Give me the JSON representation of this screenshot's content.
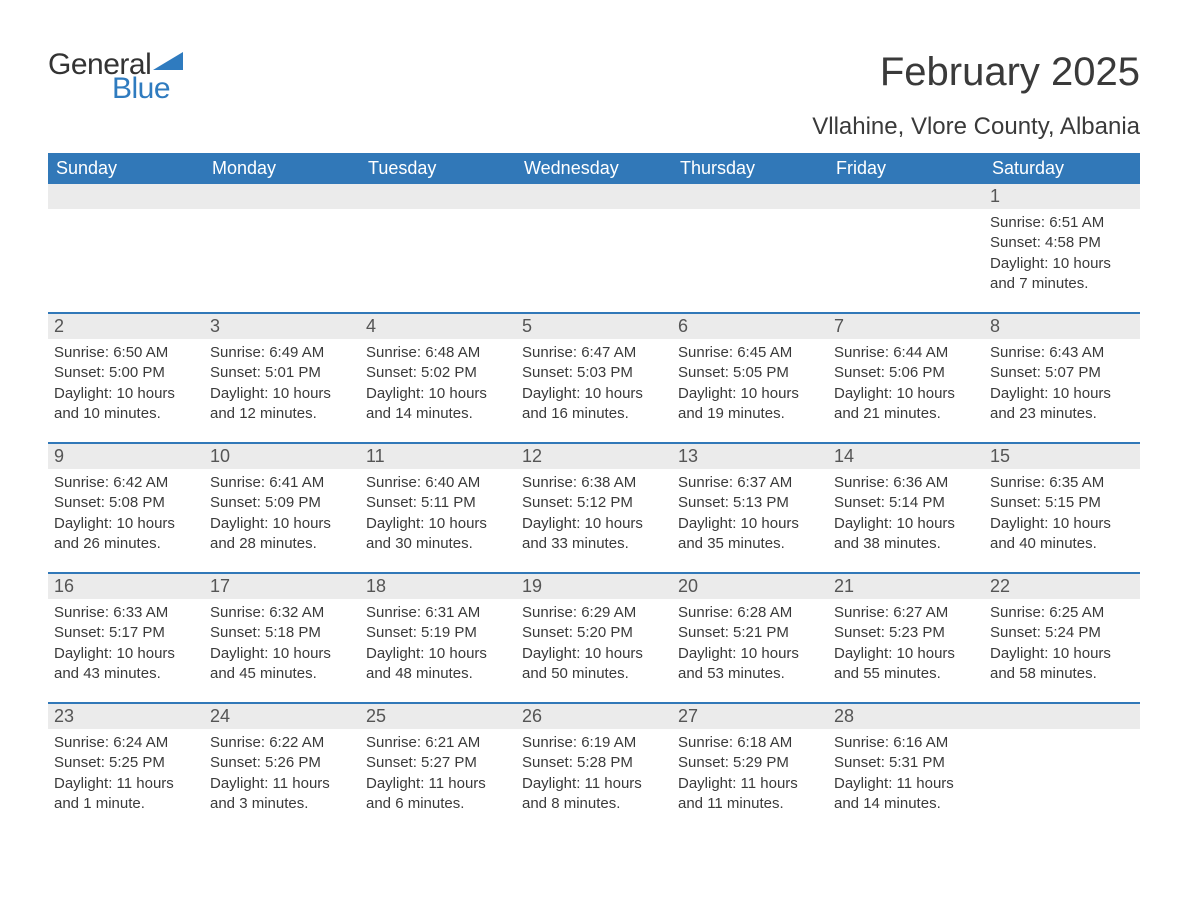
{
  "logo": {
    "text_general": "General",
    "text_blue": "Blue"
  },
  "title": "February 2025",
  "location": "Vllahine, Vlore County, Albania",
  "colors": {
    "header_bg": "#3178b8",
    "header_text": "#ffffff",
    "daynum_bg": "#ebebeb",
    "text": "#3a3a3a",
    "row_border": "#3178b8",
    "logo_blue": "#2f7bbf",
    "logo_dark": "#333333",
    "background": "#ffffff"
  },
  "weekdays": [
    "Sunday",
    "Monday",
    "Tuesday",
    "Wednesday",
    "Thursday",
    "Friday",
    "Saturday"
  ],
  "weeks": [
    [
      {
        "day": "",
        "lines": []
      },
      {
        "day": "",
        "lines": []
      },
      {
        "day": "",
        "lines": []
      },
      {
        "day": "",
        "lines": []
      },
      {
        "day": "",
        "lines": []
      },
      {
        "day": "",
        "lines": []
      },
      {
        "day": "1",
        "lines": [
          "Sunrise: 6:51 AM",
          "Sunset: 4:58 PM",
          "Daylight: 10 hours and 7 minutes."
        ]
      }
    ],
    [
      {
        "day": "2",
        "lines": [
          "Sunrise: 6:50 AM",
          "Sunset: 5:00 PM",
          "Daylight: 10 hours and 10 minutes."
        ]
      },
      {
        "day": "3",
        "lines": [
          "Sunrise: 6:49 AM",
          "Sunset: 5:01 PM",
          "Daylight: 10 hours and 12 minutes."
        ]
      },
      {
        "day": "4",
        "lines": [
          "Sunrise: 6:48 AM",
          "Sunset: 5:02 PM",
          "Daylight: 10 hours and 14 minutes."
        ]
      },
      {
        "day": "5",
        "lines": [
          "Sunrise: 6:47 AM",
          "Sunset: 5:03 PM",
          "Daylight: 10 hours and 16 minutes."
        ]
      },
      {
        "day": "6",
        "lines": [
          "Sunrise: 6:45 AM",
          "Sunset: 5:05 PM",
          "Daylight: 10 hours and 19 minutes."
        ]
      },
      {
        "day": "7",
        "lines": [
          "Sunrise: 6:44 AM",
          "Sunset: 5:06 PM",
          "Daylight: 10 hours and 21 minutes."
        ]
      },
      {
        "day": "8",
        "lines": [
          "Sunrise: 6:43 AM",
          "Sunset: 5:07 PM",
          "Daylight: 10 hours and 23 minutes."
        ]
      }
    ],
    [
      {
        "day": "9",
        "lines": [
          "Sunrise: 6:42 AM",
          "Sunset: 5:08 PM",
          "Daylight: 10 hours and 26 minutes."
        ]
      },
      {
        "day": "10",
        "lines": [
          "Sunrise: 6:41 AM",
          "Sunset: 5:09 PM",
          "Daylight: 10 hours and 28 minutes."
        ]
      },
      {
        "day": "11",
        "lines": [
          "Sunrise: 6:40 AM",
          "Sunset: 5:11 PM",
          "Daylight: 10 hours and 30 minutes."
        ]
      },
      {
        "day": "12",
        "lines": [
          "Sunrise: 6:38 AM",
          "Sunset: 5:12 PM",
          "Daylight: 10 hours and 33 minutes."
        ]
      },
      {
        "day": "13",
        "lines": [
          "Sunrise: 6:37 AM",
          "Sunset: 5:13 PM",
          "Daylight: 10 hours and 35 minutes."
        ]
      },
      {
        "day": "14",
        "lines": [
          "Sunrise: 6:36 AM",
          "Sunset: 5:14 PM",
          "Daylight: 10 hours and 38 minutes."
        ]
      },
      {
        "day": "15",
        "lines": [
          "Sunrise: 6:35 AM",
          "Sunset: 5:15 PM",
          "Daylight: 10 hours and 40 minutes."
        ]
      }
    ],
    [
      {
        "day": "16",
        "lines": [
          "Sunrise: 6:33 AM",
          "Sunset: 5:17 PM",
          "Daylight: 10 hours and 43 minutes."
        ]
      },
      {
        "day": "17",
        "lines": [
          "Sunrise: 6:32 AM",
          "Sunset: 5:18 PM",
          "Daylight: 10 hours and 45 minutes."
        ]
      },
      {
        "day": "18",
        "lines": [
          "Sunrise: 6:31 AM",
          "Sunset: 5:19 PM",
          "Daylight: 10 hours and 48 minutes."
        ]
      },
      {
        "day": "19",
        "lines": [
          "Sunrise: 6:29 AM",
          "Sunset: 5:20 PM",
          "Daylight: 10 hours and 50 minutes."
        ]
      },
      {
        "day": "20",
        "lines": [
          "Sunrise: 6:28 AM",
          "Sunset: 5:21 PM",
          "Daylight: 10 hours and 53 minutes."
        ]
      },
      {
        "day": "21",
        "lines": [
          "Sunrise: 6:27 AM",
          "Sunset: 5:23 PM",
          "Daylight: 10 hours and 55 minutes."
        ]
      },
      {
        "day": "22",
        "lines": [
          "Sunrise: 6:25 AM",
          "Sunset: 5:24 PM",
          "Daylight: 10 hours and 58 minutes."
        ]
      }
    ],
    [
      {
        "day": "23",
        "lines": [
          "Sunrise: 6:24 AM",
          "Sunset: 5:25 PM",
          "Daylight: 11 hours and 1 minute."
        ]
      },
      {
        "day": "24",
        "lines": [
          "Sunrise: 6:22 AM",
          "Sunset: 5:26 PM",
          "Daylight: 11 hours and 3 minutes."
        ]
      },
      {
        "day": "25",
        "lines": [
          "Sunrise: 6:21 AM",
          "Sunset: 5:27 PM",
          "Daylight: 11 hours and 6 minutes."
        ]
      },
      {
        "day": "26",
        "lines": [
          "Sunrise: 6:19 AM",
          "Sunset: 5:28 PM",
          "Daylight: 11 hours and 8 minutes."
        ]
      },
      {
        "day": "27",
        "lines": [
          "Sunrise: 6:18 AM",
          "Sunset: 5:29 PM",
          "Daylight: 11 hours and 11 minutes."
        ]
      },
      {
        "day": "28",
        "lines": [
          "Sunrise: 6:16 AM",
          "Sunset: 5:31 PM",
          "Daylight: 11 hours and 14 minutes."
        ]
      },
      {
        "day": "",
        "lines": []
      }
    ]
  ]
}
